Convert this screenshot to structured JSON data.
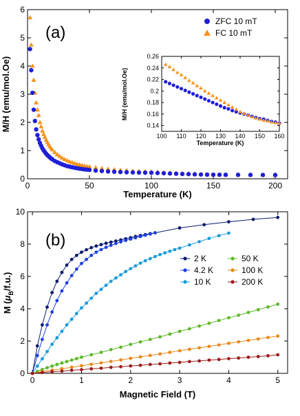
{
  "chart_data": [
    {
      "type": "scatter",
      "panel_label": "(a)",
      "xlabel": "Temperature (K)",
      "ylabel": "M/H (emu/mol.Oe)",
      "xlim": [
        0,
        210
      ],
      "ylim": [
        0,
        6
      ],
      "xticks": [
        "0",
        "50",
        "100",
        "150",
        "200"
      ],
      "yticks": [
        "0",
        "1",
        "2",
        "3",
        "4",
        "5",
        "6"
      ],
      "legend_position": "top-right",
      "series": [
        {
          "name": "ZFC 10 mT",
          "color": "#1f1fd6",
          "marker": "circle",
          "x": [
            2,
            3,
            4,
            5,
            6,
            7,
            8,
            9,
            10,
            11,
            12,
            13,
            14,
            15,
            16,
            17,
            18,
            19,
            20,
            22,
            24,
            26,
            28,
            30,
            32,
            34,
            36,
            38,
            40,
            42,
            44,
            46,
            48,
            50,
            55,
            60,
            65,
            70,
            75,
            80,
            85,
            90,
            95,
            100,
            105,
            110,
            115,
            120,
            125,
            130,
            135,
            140,
            145,
            150,
            155,
            160,
            170,
            180,
            190,
            200
          ],
          "y": [
            4.6,
            3.85,
            3.05,
            2.45,
            2.05,
            1.75,
            1.55,
            1.4,
            1.27,
            1.17,
            1.08,
            1.01,
            0.95,
            0.89,
            0.84,
            0.8,
            0.76,
            0.72,
            0.69,
            0.63,
            0.59,
            0.55,
            0.51,
            0.48,
            0.45,
            0.43,
            0.41,
            0.39,
            0.375,
            0.36,
            0.345,
            0.335,
            0.325,
            0.315,
            0.29,
            0.275,
            0.26,
            0.25,
            0.24,
            0.232,
            0.226,
            0.221,
            0.218,
            0.215,
            0.205,
            0.197,
            0.188,
            0.18,
            0.172,
            0.165,
            0.158,
            0.152,
            0.148,
            0.145,
            0.143,
            0.142,
            0.14,
            0.138,
            0.136,
            0.134
          ]
        },
        {
          "name": "FC 10 mT",
          "color": "#f4931e",
          "marker": "triangle",
          "x": [
            2,
            3,
            4,
            5,
            6,
            7,
            8,
            9,
            10,
            11,
            12,
            13,
            14,
            15,
            16,
            17,
            18,
            19,
            20,
            22,
            24,
            26,
            28,
            30,
            32,
            34,
            36,
            38,
            40,
            42,
            44,
            46,
            48,
            50,
            55,
            60,
            65,
            70,
            75,
            80,
            85,
            90,
            95,
            100,
            105,
            110,
            115,
            120,
            125,
            130,
            135,
            140,
            145,
            150,
            155,
            160,
            170,
            180,
            190,
            200
          ],
          "y": [
            5.72,
            4.75,
            4.0,
            3.5,
            3.05,
            2.7,
            2.45,
            2.25,
            2.0,
            1.85,
            1.7,
            1.58,
            1.48,
            1.38,
            1.3,
            1.22,
            1.15,
            1.09,
            1.03,
            0.94,
            0.86,
            0.8,
            0.74,
            0.69,
            0.65,
            0.61,
            0.58,
            0.55,
            0.52,
            0.5,
            0.48,
            0.46,
            0.44,
            0.43,
            0.4,
            0.37,
            0.35,
            0.33,
            0.31,
            0.3,
            0.28,
            0.27,
            0.26,
            0.248,
            0.236,
            0.224,
            0.213,
            0.203,
            0.193,
            0.184,
            0.174,
            0.163,
            0.154,
            0.147,
            0.145,
            0.143,
            0.141,
            0.139,
            0.137,
            0.135
          ]
        }
      ],
      "inset": {
        "xlabel": "Temperature (K)",
        "ylabel": "M/H (emu/mol.Oe)",
        "xlim": [
          100,
          160
        ],
        "ylim": [
          0.13,
          0.26
        ],
        "xticks": [
          "100",
          "110",
          "120",
          "130",
          "140",
          "150",
          "160"
        ],
        "yticks": [
          "0.14",
          "0.16",
          "0.18",
          "0.2",
          "0.22",
          "0.24",
          "0.26"
        ],
        "series": [
          {
            "name": "ZFC 10 mT",
            "x": [
              102,
              104,
              106,
              108,
              110,
              112,
              114,
              116,
              118,
              120,
              122,
              124,
              126,
              128,
              130,
              132,
              134,
              136,
              138,
              140,
              142,
              144,
              146,
              148,
              150,
              152,
              154,
              156,
              158,
              160
            ],
            "y": [
              0.216,
              0.213,
              0.21,
              0.207,
              0.204,
              0.201,
              0.198,
              0.195,
              0.192,
              0.189,
              0.186,
              0.183,
              0.18,
              0.177,
              0.174,
              0.171,
              0.169,
              0.166,
              0.164,
              0.162,
              0.16,
              0.158,
              0.156,
              0.154,
              0.152,
              0.151,
              0.149,
              0.147,
              0.146,
              0.144
            ]
          },
          {
            "name": "FC 10 mT",
            "x": [
              102,
              104,
              106,
              108,
              110,
              112,
              114,
              116,
              118,
              120,
              122,
              124,
              126,
              128,
              130,
              132,
              134,
              136,
              138,
              140,
              142,
              144,
              146,
              148,
              150,
              152,
              154,
              156,
              158,
              160
            ],
            "y": [
              0.246,
              0.242,
              0.237,
              0.232,
              0.228,
              0.223,
              0.218,
              0.214,
              0.209,
              0.205,
              0.2,
              0.196,
              0.192,
              0.188,
              0.184,
              0.18,
              0.176,
              0.172,
              0.168,
              0.164,
              0.161,
              0.158,
              0.155,
              0.153,
              0.151,
              0.149,
              0.148,
              0.146,
              0.145,
              0.144
            ]
          }
        ]
      }
    },
    {
      "type": "line",
      "panel_label": "(b)",
      "xlabel": "Magnetic Field (T)",
      "ylabel_parts": [
        "M (",
        "μ",
        "B",
        "/f.u.)"
      ],
      "xlim": [
        -0.1,
        5.2
      ],
      "ylim": [
        0,
        10
      ],
      "xticks": [
        "0",
        "1",
        "2",
        "3",
        "4",
        "5"
      ],
      "yticks": [
        "0",
        "2",
        "4",
        "6",
        "8",
        "10"
      ],
      "legend_position": "right",
      "series": [
        {
          "name": "2 K",
          "color": "#0d1b6e",
          "x": [
            0,
            0.1,
            0.2,
            0.3,
            0.4,
            0.5,
            0.6,
            0.7,
            0.8,
            0.9,
            1.0,
            1.1,
            1.2,
            1.3,
            1.4,
            1.5,
            1.6,
            1.7,
            1.8,
            1.9,
            2.0,
            2.1,
            2.2,
            2.3,
            2.4,
            2.5,
            3.0,
            3.5,
            4.0,
            4.5,
            5.0
          ],
          "y": [
            0,
            1.7,
            3.0,
            4.1,
            5.0,
            5.7,
            6.25,
            6.7,
            7.05,
            7.3,
            7.5,
            7.65,
            7.78,
            7.88,
            7.97,
            8.05,
            8.12,
            8.19,
            8.26,
            8.33,
            8.4,
            8.47,
            8.53,
            8.59,
            8.65,
            8.7,
            9.0,
            9.2,
            9.38,
            9.53,
            9.65
          ]
        },
        {
          "name": "4.2 K",
          "color": "#1c3fe0",
          "x": [
            0,
            0.1,
            0.2,
            0.3,
            0.4,
            0.5,
            0.6,
            0.7,
            0.8,
            0.9,
            1.0,
            1.1,
            1.2,
            1.3,
            1.4,
            1.5,
            1.6,
            1.7,
            1.8,
            1.9,
            2.0,
            2.1,
            2.2,
            2.3,
            2.4,
            2.5
          ],
          "y": [
            0,
            1.1,
            2.1,
            3.0,
            3.8,
            4.5,
            5.1,
            5.6,
            6.05,
            6.45,
            6.8,
            7.05,
            7.3,
            7.5,
            7.66,
            7.8,
            7.93,
            8.04,
            8.14,
            8.23,
            8.31,
            8.39,
            8.47,
            8.55,
            8.62,
            8.7
          ]
        },
        {
          "name": "10 K",
          "color": "#1a9bdc",
          "x": [
            0,
            0.1,
            0.2,
            0.3,
            0.4,
            0.5,
            0.6,
            0.7,
            0.8,
            0.9,
            1.0,
            1.1,
            1.2,
            1.3,
            1.4,
            1.5,
            1.6,
            1.7,
            1.8,
            1.9,
            2.0,
            2.1,
            2.2,
            2.3,
            2.4,
            2.5,
            2.6,
            2.7,
            2.8,
            2.9,
            3.0,
            3.2,
            3.4,
            3.6,
            3.8,
            4.0
          ],
          "y": [
            0,
            0.45,
            0.9,
            1.35,
            1.8,
            2.2,
            2.6,
            3.0,
            3.35,
            3.7,
            4.05,
            4.35,
            4.65,
            4.95,
            5.2,
            5.45,
            5.7,
            5.9,
            6.1,
            6.3,
            6.48,
            6.65,
            6.82,
            6.97,
            7.1,
            7.23,
            7.35,
            7.46,
            7.56,
            7.66,
            7.75,
            7.95,
            8.15,
            8.35,
            8.52,
            8.68
          ]
        },
        {
          "name": "50 K",
          "color": "#5cb82a",
          "x": [
            0,
            0.1,
            0.2,
            0.3,
            0.4,
            0.5,
            0.6,
            0.7,
            0.8,
            0.9,
            1.0,
            1.2,
            1.4,
            1.6,
            1.8,
            2.0,
            2.2,
            2.4,
            2.6,
            2.8,
            3.0,
            3.2,
            3.4,
            3.6,
            3.8,
            4.0,
            4.2,
            4.4,
            4.6,
            4.8,
            5.0
          ],
          "y": [
            0,
            0.12,
            0.24,
            0.35,
            0.45,
            0.55,
            0.64,
            0.73,
            0.82,
            0.91,
            1.0,
            1.15,
            1.3,
            1.47,
            1.62,
            1.79,
            1.95,
            2.1,
            2.26,
            2.43,
            2.6,
            2.76,
            2.93,
            3.1,
            3.27,
            3.44,
            3.6,
            3.77,
            3.94,
            4.11,
            4.28
          ]
        },
        {
          "name": "100 K",
          "color": "#e8891a",
          "x": [
            0,
            0.2,
            0.4,
            0.6,
            0.8,
            1.0,
            1.2,
            1.4,
            1.6,
            1.8,
            2.0,
            2.2,
            2.4,
            2.6,
            2.8,
            3.0,
            3.2,
            3.4,
            3.6,
            3.8,
            4.0,
            4.2,
            4.4,
            4.6,
            4.8,
            5.0
          ],
          "y": [
            0,
            0.11,
            0.2,
            0.29,
            0.38,
            0.47,
            0.56,
            0.65,
            0.74,
            0.83,
            0.93,
            1.02,
            1.11,
            1.2,
            1.3,
            1.4,
            1.49,
            1.58,
            1.67,
            1.76,
            1.86,
            1.95,
            2.04,
            2.13,
            2.22,
            2.31
          ]
        },
        {
          "name": "200 K",
          "color": "#9b1b1b",
          "x": [
            0,
            0.2,
            0.4,
            0.6,
            0.8,
            1.0,
            1.2,
            1.4,
            1.6,
            1.8,
            2.0,
            2.2,
            2.4,
            2.6,
            2.8,
            3.0,
            3.2,
            3.4,
            3.6,
            3.8,
            4.0,
            4.2,
            4.4,
            4.6,
            4.8,
            5.0
          ],
          "y": [
            0,
            0.05,
            0.1,
            0.14,
            0.19,
            0.23,
            0.28,
            0.32,
            0.37,
            0.41,
            0.46,
            0.5,
            0.55,
            0.59,
            0.64,
            0.68,
            0.73,
            0.77,
            0.82,
            0.86,
            0.91,
            0.95,
            1.0,
            1.04,
            1.09,
            1.15
          ]
        }
      ]
    }
  ]
}
